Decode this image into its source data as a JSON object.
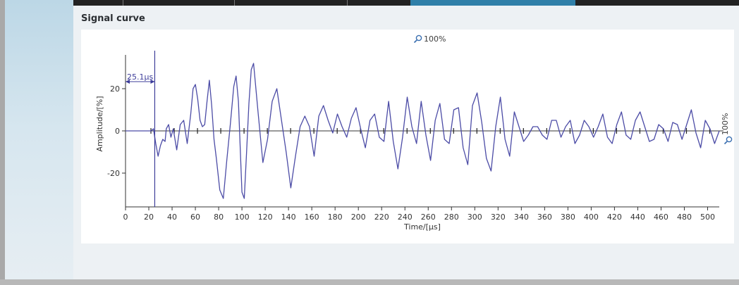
{
  "panel": {
    "title": "Signal curve"
  },
  "zoom": {
    "x_label": "100%",
    "y_label": "100%"
  },
  "chart_data": {
    "type": "line",
    "xlabel": "Time/[µs]",
    "ylabel": "Amplitude/[%]",
    "xlim": [
      0,
      510
    ],
    "ylim": [
      -36,
      36
    ],
    "xticks": [
      0,
      20,
      40,
      60,
      80,
      100,
      120,
      140,
      160,
      180,
      200,
      220,
      240,
      260,
      280,
      300,
      320,
      340,
      360,
      380,
      400,
      420,
      440,
      460,
      480,
      500
    ],
    "yticks": [
      -20,
      0,
      20
    ],
    "cursor": {
      "x": 25.1,
      "label": "25.1µs"
    },
    "series": [
      {
        "color": "#4c4ca6",
        "x": [
          0,
          22,
          24,
          26,
          28,
          30,
          32,
          34,
          35,
          37,
          39,
          41,
          44,
          47,
          50,
          53,
          56,
          58,
          60,
          62,
          64,
          66,
          68,
          70,
          72,
          74,
          76,
          78,
          81,
          84,
          87,
          90,
          93,
          95,
          97,
          100,
          102,
          104,
          106,
          108,
          110,
          114,
          118,
          122,
          126,
          130,
          134,
          138,
          142,
          146,
          150,
          154,
          158,
          162,
          166,
          170,
          174,
          178,
          182,
          186,
          190,
          194,
          198,
          202,
          206,
          210,
          214,
          218,
          222,
          226,
          230,
          234,
          238,
          242,
          246,
          250,
          254,
          258,
          262,
          266,
          270,
          274,
          278,
          282,
          286,
          290,
          294,
          298,
          302,
          306,
          310,
          314,
          318,
          322,
          326,
          330,
          334,
          338,
          342,
          346,
          350,
          354,
          358,
          362,
          366,
          370,
          374,
          378,
          382,
          386,
          390,
          394,
          398,
          402,
          406,
          410,
          414,
          418,
          422,
          426,
          430,
          434,
          438,
          442,
          446,
          450,
          454,
          458,
          462,
          466,
          470,
          474,
          478,
          482,
          486,
          490,
          494,
          498,
          502,
          506,
          510
        ],
        "y": [
          0,
          0,
          1,
          -6,
          -12,
          -7,
          -4,
          -5,
          1,
          3,
          -3,
          1,
          -9,
          3,
          5,
          -6,
          8,
          20,
          22,
          15,
          5,
          2,
          3,
          14,
          24,
          12,
          -4,
          -13,
          -28,
          -32,
          -14,
          3,
          21,
          26,
          14,
          -29,
          -32,
          -10,
          13,
          29,
          32,
          8,
          -15,
          -4,
          14,
          20,
          5,
          -10,
          -27,
          -12,
          2,
          7,
          2,
          -12,
          7,
          12,
          5,
          -1,
          8,
          2,
          -3,
          6,
          11,
          1,
          -8,
          5,
          8,
          -3,
          -5,
          14,
          -5,
          -18,
          -3,
          16,
          2,
          -6,
          14,
          -2,
          -14,
          5,
          13,
          -4,
          -6,
          10,
          11,
          -8,
          -16,
          12,
          18,
          4,
          -13,
          -19,
          2,
          16,
          -4,
          -12,
          9,
          2,
          -5,
          -2,
          2,
          2,
          -2,
          -4,
          5,
          5,
          -3,
          2,
          5,
          -6,
          -2,
          5,
          2,
          -3,
          2,
          8,
          -3,
          -6,
          3,
          9,
          -2,
          -4,
          5,
          9,
          2,
          -5,
          -4,
          3,
          1,
          -5,
          4,
          3,
          -4,
          3,
          10,
          -1,
          -8,
          5,
          1,
          -6,
          0
        ]
      }
    ]
  }
}
